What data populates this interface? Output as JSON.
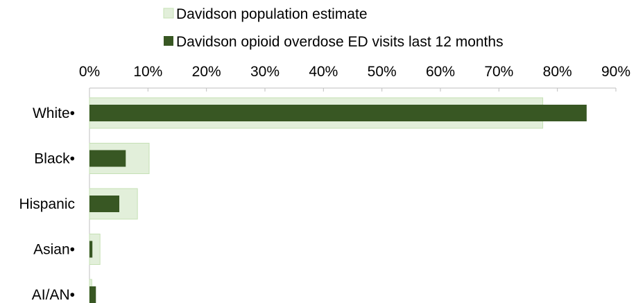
{
  "chart_data": {
    "type": "bar",
    "orientation": "horizontal",
    "categories": [
      "White•",
      "Black•",
      "Hispanic",
      "Asian•",
      "AI/AN•"
    ],
    "series": [
      {
        "name": "Davidson population estimate",
        "values": [
          77.5,
          10.2,
          8.2,
          1.8,
          0.4
        ],
        "color": "#e2efda",
        "stroke": "#c5e0b4"
      },
      {
        "name": "Davidson opioid overdose ED visits last 12 months",
        "values": [
          85.0,
          6.2,
          5.1,
          0.5,
          1.1
        ],
        "color": "#385723"
      }
    ],
    "xlim": [
      0,
      90
    ],
    "xticks": [
      "0%",
      "10%",
      "20%",
      "30%",
      "40%",
      "50%",
      "60%",
      "70%",
      "80%",
      "90%"
    ],
    "x_axis_position": "top",
    "legend_position": "top",
    "grid": false,
    "title": "",
    "xlabel": "",
    "ylabel": ""
  }
}
